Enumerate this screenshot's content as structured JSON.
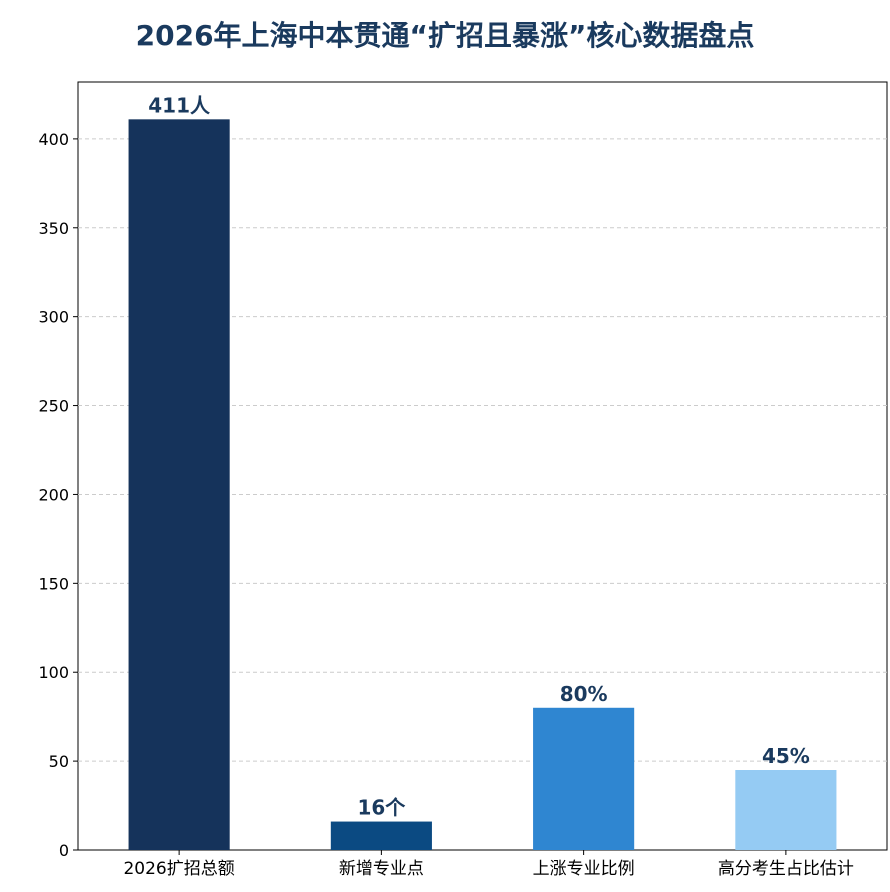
{
  "chart_data": {
    "type": "bar",
    "title": "2026年上海中本贯通“扩招且暴涨”核心数据盘点",
    "xlabel": "",
    "ylabel": "",
    "categories": [
      "2026扩招总额",
      "新增专业点",
      "上涨专业比例",
      "高分考生占比估计"
    ],
    "values": [
      411,
      16,
      80,
      45
    ],
    "data_labels": [
      "411人",
      "16个",
      "80%",
      "45%"
    ],
    "colors": [
      "#15335b",
      "#0b4a82",
      "#2f86d1",
      "#95cbf3"
    ],
    "ylim": [
      0,
      432
    ],
    "yticks": [
      0,
      50,
      100,
      150,
      200,
      250,
      300,
      350,
      400
    ],
    "grid": "horizontal-dashed",
    "legend": "none"
  }
}
